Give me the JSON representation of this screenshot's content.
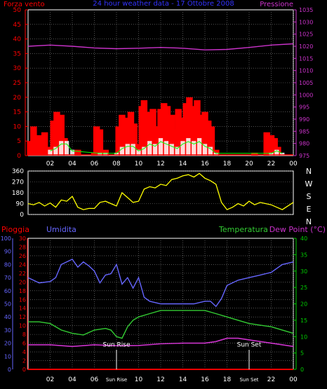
{
  "header": {
    "left_label": "Forza vento",
    "title": "24 hour weather data - 17 Ottobre 2008",
    "right_label": "Pressione"
  },
  "direction_labels": [
    "N",
    "W",
    "S",
    "E",
    "N"
  ],
  "lower_header": {
    "rain": "Pioggia",
    "humidity": "Umidita",
    "temperature": "Temperatura",
    "dew": "Dew Point (°C)"
  },
  "events": {
    "sunrise": "Sun Rise",
    "sunset": "Sun Set"
  },
  "colors": {
    "wind": "#ff0000",
    "pressure": "#cc33cc",
    "direction": "#ffff00",
    "humidity": "#6666ff",
    "temperature": "#33cc33",
    "dew": "#cc33cc",
    "rain": "#ff0000",
    "grid": "#888888",
    "axis_green": "#00cc00"
  },
  "chart_data": [
    {
      "type": "bar",
      "title": "24 hour weather data - 17 Ottobre 2008",
      "xticks": [
        "02",
        "04",
        "06",
        "08",
        "10",
        "12",
        "14",
        "16",
        "18",
        "20",
        "22",
        "00"
      ],
      "xlim": [
        0,
        24
      ],
      "y_left": {
        "label": "Forza vento",
        "ticks": [
          0,
          5,
          10,
          15,
          20,
          25,
          30,
          35,
          40,
          45,
          50
        ],
        "lim": [
          0,
          50
        ]
      },
      "y_right": {
        "label": "Pressione",
        "ticks": [
          975,
          980,
          985,
          990,
          995,
          1000,
          1005,
          1010,
          1015,
          1020,
          1025,
          1030,
          1035
        ],
        "lim": [
          975,
          1035
        ]
      },
      "series": [
        {
          "name": "Forza vento",
          "type": "bar",
          "x": [
            0.2,
            0.5,
            1,
            1.5,
            2,
            2.3,
            2.6,
            3,
            3.3,
            4.5,
            5,
            5.5,
            6,
            6.2,
            6.5,
            7,
            7.5,
            8,
            8.2,
            8.5,
            8.8,
            9,
            9.3,
            9.6,
            10,
            10.3,
            10.5,
            11,
            11.3,
            11.6,
            12,
            12.3,
            12.6,
            13,
            13.3,
            13.6,
            14,
            14.3,
            14.6,
            15,
            15.3,
            15.6,
            16,
            16.3,
            16.6,
            17,
            17.5,
            18,
            18.5,
            19,
            19.5,
            20,
            20.5,
            21,
            21.3,
            21.6,
            22,
            22.3,
            22.6,
            23
          ],
          "values": [
            5,
            10,
            7,
            8,
            3,
            12,
            15,
            14,
            6,
            2,
            0,
            0,
            1,
            10,
            9,
            2,
            0,
            0,
            10,
            14,
            12,
            13,
            15,
            11,
            4,
            17,
            19,
            15,
            16,
            10,
            16,
            18,
            17,
            14,
            9,
            16,
            13,
            18,
            20,
            17,
            19,
            14,
            15,
            12,
            10,
            2,
            0,
            0,
            0,
            0,
            0,
            0,
            1,
            0,
            0,
            8,
            7,
            6,
            3,
            0
          ]
        },
        {
          "name": "gust-mean",
          "type": "line",
          "x": [
            2,
            2.5,
            3,
            3.5,
            4,
            6.5,
            7,
            8,
            8.5,
            9,
            9.5,
            10,
            10.5,
            11,
            11.5,
            12,
            12.5,
            13,
            13.5,
            14,
            14.5,
            15,
            15.5,
            16,
            16.5,
            17,
            22,
            22.5,
            23
          ],
          "values": [
            2,
            3,
            5,
            5,
            2,
            1,
            1,
            1,
            3,
            4,
            4,
            2,
            3,
            5,
            4,
            6,
            5,
            4,
            3,
            5,
            6,
            5,
            6,
            4,
            3,
            1,
            1,
            2,
            1
          ]
        },
        {
          "name": "Pressione",
          "type": "line",
          "x": [
            0,
            2,
            4,
            6,
            8,
            10,
            12,
            14,
            16,
            18,
            20,
            22,
            24
          ],
          "values": [
            1020,
            1020.5,
            1020,
            1019.3,
            1019,
            1019.2,
            1019.5,
            1019.2,
            1018.5,
            1018.7,
            1019.5,
            1020.5,
            1021
          ]
        }
      ]
    },
    {
      "type": "line",
      "xticks": [
        "02",
        "04",
        "06",
        "08",
        "10",
        "12",
        "14",
        "16",
        "18",
        "20",
        "22",
        "00"
      ],
      "xlim": [
        0,
        24
      ],
      "y_left": {
        "ticks": [
          0,
          90,
          180,
          270,
          360
        ],
        "lim": [
          0,
          360
        ]
      },
      "series": [
        {
          "name": "direction",
          "x": [
            0,
            0.5,
            1,
            1.5,
            2,
            2.5,
            3,
            3.5,
            4,
            4.5,
            5,
            5.5,
            6,
            6.5,
            7,
            7.5,
            8,
            8.5,
            9,
            9.5,
            10,
            10.5,
            11,
            11.5,
            12,
            12.5,
            13,
            13.5,
            14,
            14.5,
            15,
            15.5,
            16,
            16.5,
            17,
            17.5,
            18,
            18.5,
            19,
            19.5,
            20,
            20.5,
            21,
            21.5,
            22,
            22.5,
            23,
            23.5,
            24
          ],
          "values": [
            90,
            80,
            100,
            70,
            95,
            60,
            120,
            110,
            150,
            60,
            40,
            50,
            50,
            100,
            110,
            90,
            70,
            180,
            140,
            100,
            110,
            210,
            230,
            220,
            250,
            240,
            290,
            300,
            320,
            330,
            310,
            340,
            300,
            280,
            250,
            100,
            40,
            60,
            90,
            70,
            110,
            80,
            100,
            90,
            80,
            60,
            40,
            70,
            100
          ]
        }
      ]
    },
    {
      "type": "line",
      "xticks": [
        "02",
        "04",
        "06",
        "Sun Rise",
        "10",
        "12",
        "14",
        "16",
        "18",
        "Sun Set",
        "22",
        "00"
      ],
      "xlim": [
        0,
        24
      ],
      "y_humidity": {
        "label": "Umidita",
        "ticks": [
          0,
          10,
          20,
          30,
          40,
          50,
          60,
          70,
          80,
          90,
          100
        ],
        "lim": [
          0,
          100
        ]
      },
      "y_rain": {
        "label": "Pioggia",
        "ticks": [
          0,
          2,
          4,
          6,
          8,
          10,
          12,
          14,
          16,
          18,
          20,
          22,
          24,
          26,
          28,
          30
        ],
        "lim": [
          0,
          30
        ]
      },
      "y_temperature": {
        "label": "Temperatura",
        "ticks": [
          0,
          5,
          10,
          15,
          20,
          25,
          30,
          35,
          40
        ],
        "lim": [
          0,
          40
        ]
      },
      "annotations": [
        "Sun Rise",
        "Sun Set"
      ],
      "series": [
        {
          "name": "Umidita",
          "x": [
            0,
            1,
            2,
            2.5,
            3,
            4,
            4.5,
            5,
            5.5,
            6,
            6.5,
            7,
            7.5,
            8,
            8.5,
            9,
            9.5,
            10,
            10.5,
            11,
            12,
            13,
            14,
            15,
            16,
            16.5,
            17,
            17.5,
            18,
            19,
            20,
            21,
            22,
            23,
            24
          ],
          "values": [
            70,
            66,
            67,
            70,
            80,
            84,
            78,
            82,
            79,
            75,
            66,
            72,
            73,
            80,
            65,
            70,
            62,
            70,
            55,
            52,
            50,
            50,
            50,
            50,
            52,
            52,
            48,
            54,
            64,
            68,
            70,
            72,
            74,
            80,
            82
          ]
        },
        {
          "name": "Temperatura",
          "x": [
            0,
            1,
            2,
            3,
            4,
            5,
            6,
            7,
            7.5,
            8,
            8.5,
            9,
            9.5,
            10,
            11,
            12,
            13,
            14,
            15,
            16,
            17,
            18,
            19,
            20,
            21,
            22,
            23,
            24
          ],
          "values": [
            14.5,
            14.5,
            14,
            12,
            11,
            10.5,
            12,
            12.5,
            12,
            10,
            9.5,
            13,
            15,
            16,
            17,
            18,
            18,
            18,
            18,
            18,
            17,
            16,
            15,
            14,
            13.5,
            13,
            12,
            11
          ]
        },
        {
          "name": "Dew Point (°C)",
          "x": [
            0,
            2,
            4,
            6,
            8,
            10,
            12,
            14,
            16,
            17,
            18,
            19,
            20,
            22,
            23,
            24
          ],
          "values": [
            7.5,
            7.5,
            7,
            7.5,
            7.2,
            7.3,
            7.8,
            8,
            8,
            8.5,
            9.5,
            9.5,
            9,
            8,
            7.5,
            7
          ]
        },
        {
          "name": "Pioggia",
          "x": [
            0,
            24
          ],
          "values": [
            0,
            0
          ]
        }
      ]
    }
  ]
}
